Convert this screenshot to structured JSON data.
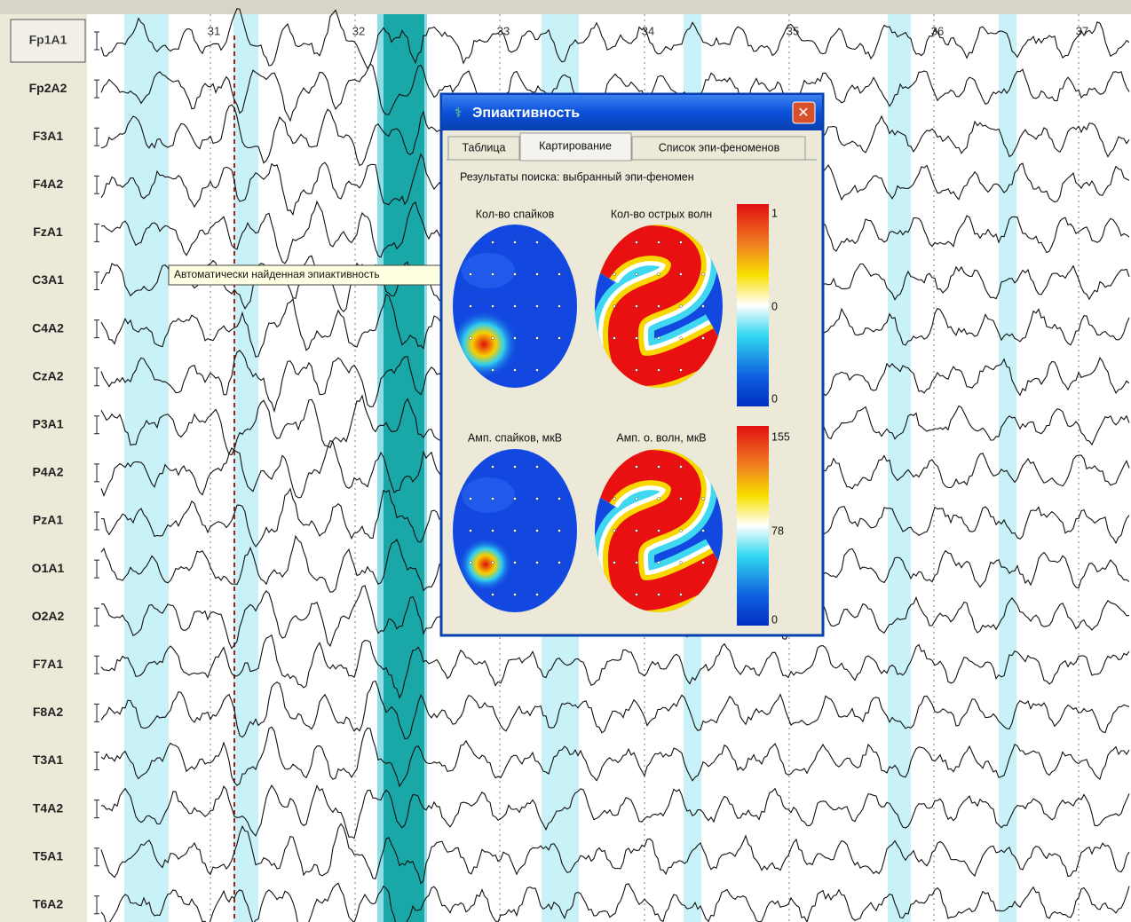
{
  "channels": [
    "Fp1A1",
    "Fp2A2",
    "F3A1",
    "F4A2",
    "FzA1",
    "C3A1",
    "C4A2",
    "CzA2",
    "P3A1",
    "P4A2",
    "PzA1",
    "O1A1",
    "O2A2",
    "F7A1",
    "F8A2",
    "T3A1",
    "T4A2",
    "T5A1",
    "T6A2"
  ],
  "time_marks": [
    31,
    32,
    33,
    34,
    35,
    36,
    37
  ],
  "tooltip": "Автоматически найденная эпиактивность",
  "dialog": {
    "title": "Эпиактивность",
    "tabs": [
      "Таблица",
      "Картирование",
      "Список эпи-феноменов"
    ],
    "subtitle": "Результаты поиска: выбранный эпи-феномен",
    "maps": [
      "Кол-во спайков",
      "Кол-во острых волн",
      "Амп. спайков, мкВ",
      "Амп. о. волн, мкВ"
    ],
    "scales": [
      [
        1,
        0,
        0
      ],
      [
        155,
        78,
        0
      ]
    ]
  }
}
